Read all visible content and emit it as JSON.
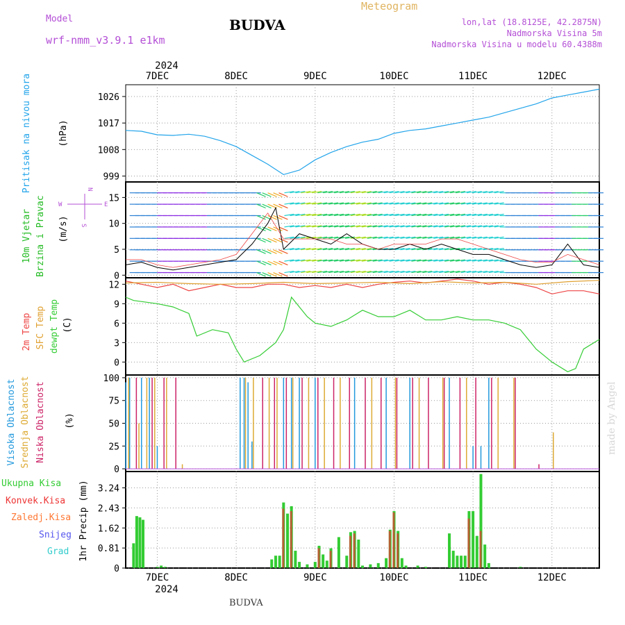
{
  "header": {
    "model_label": "Model",
    "model_name": "wrf-nmm_v3.9.1  e1km",
    "title": "BUDVA",
    "meteogram_label": "Meteogram",
    "coords": "lon,lat (18.8125E, 42.2875N)",
    "elevation": "Nadmorska Visina 5m",
    "model_elevation": "Nadmorska Visina u modelu 60.4388m"
  },
  "footer": {
    "location": "BUDVA"
  },
  "watermark": "made by Angel",
  "colors": {
    "pressure": "#22a4ea",
    "wind_label": "#22bb22",
    "temp2m": "#ee4444",
    "sfc_temp": "#e0a030",
    "dewpt": "#33cc33",
    "high_cloud": "#2299dd",
    "mid_cloud": "#ddaa33",
    "low_cloud": "#cc2266",
    "total_precip": "#33cc33",
    "conv_precip": "#ee3333",
    "freezing_precip": "#ff7733",
    "snow": "#5555ee",
    "hail": "#33cccc",
    "purple": "#b44fd6"
  },
  "chart_data": [
    {
      "type": "line",
      "panel": "pressure",
      "ylabel_lines": [
        "Pritisak na nivou mora",
        "(hPa)"
      ],
      "ylim": [
        997,
        1030
      ],
      "yticks": [
        999,
        1008,
        1017,
        1026
      ],
      "x_days": [
        "7DEC",
        "8DEC",
        "9DEC",
        "10DEC",
        "11DEC",
        "12DEC"
      ],
      "x_year": "2024",
      "xlim_day": [
        6.6,
        12.6
      ],
      "grid": true,
      "series": [
        {
          "x": [
            6.6,
            6.8,
            7.0,
            7.2,
            7.4,
            7.6,
            7.8,
            8.0,
            8.2,
            8.4,
            8.6,
            8.8,
            9.0,
            9.2,
            9.4,
            9.6,
            9.8,
            10.0,
            10.2,
            10.4,
            10.6,
            10.8,
            11.0,
            11.2,
            11.4,
            11.6,
            11.8,
            12.0,
            12.2,
            12.4,
            12.6
          ],
          "values": [
            1014.5,
            1014.2,
            1013.0,
            1012.8,
            1013.2,
            1012.5,
            1011.0,
            1009.0,
            1006.0,
            1003.0,
            999.5,
            1001.0,
            1004.5,
            1007.0,
            1009.0,
            1010.5,
            1011.5,
            1013.5,
            1014.5,
            1015.0,
            1016.0,
            1017.0,
            1018.0,
            1019.0,
            1020.5,
            1022.0,
            1023.5,
            1025.5,
            1026.5,
            1027.5,
            1028.5
          ]
        }
      ]
    },
    {
      "type": "line",
      "panel": "wind",
      "ylabel_lines": [
        "10m Vjetar",
        "Brzina i Pravac",
        "(m/s)"
      ],
      "compass": {
        "n": "N",
        "w": "W",
        "e": "E",
        "s": "S"
      },
      "ylim": [
        -0.5,
        18
      ],
      "yticks": [
        0,
        5,
        10,
        15
      ],
      "note": "wind barbs colored by speed",
      "series": [
        {
          "name": "speed",
          "x": [
            6.6,
            6.8,
            7.0,
            7.2,
            7.4,
            7.6,
            7.8,
            8.0,
            8.2,
            8.4,
            8.5,
            8.6,
            8.8,
            9.0,
            9.2,
            9.4,
            9.6,
            9.8,
            10.0,
            10.2,
            10.4,
            10.6,
            10.8,
            11.0,
            11.2,
            11.4,
            11.6,
            11.8,
            12.0,
            12.2,
            12.4,
            12.6
          ],
          "values": [
            2,
            2.5,
            1.5,
            1,
            1.5,
            2,
            2.5,
            3,
            6,
            10,
            13,
            5,
            8,
            7,
            6,
            8,
            6,
            5,
            5,
            6,
            5,
            6,
            5,
            4,
            4,
            3,
            2,
            1.5,
            2,
            6,
            2,
            1.5
          ]
        },
        {
          "name": "gust",
          "x": [
            6.6,
            6.8,
            7.0,
            7.2,
            7.4,
            7.6,
            7.8,
            8.0,
            8.2,
            8.4,
            8.6,
            8.8,
            9.0,
            9.2,
            9.4,
            9.6,
            9.8,
            10.0,
            10.2,
            10.4,
            10.6,
            10.8,
            11.0,
            11.2,
            11.4,
            11.6,
            11.8,
            12.0,
            12.2,
            12.4,
            12.6
          ],
          "values": [
            3,
            3,
            2,
            1.5,
            2,
            2.5,
            3,
            4,
            8,
            12,
            7,
            7,
            7,
            7,
            6,
            6,
            5,
            6,
            6,
            6,
            7,
            7,
            6,
            5,
            4,
            3,
            2.5,
            2.5,
            4,
            3,
            2
          ]
        }
      ]
    },
    {
      "type": "line",
      "panel": "temperature",
      "ylabel_lines": [
        "2m Temp",
        "SFC Temp",
        "dewpt Temp",
        "(C)"
      ],
      "ylim": [
        -2,
        13
      ],
      "yticks": [
        0,
        3,
        6,
        9,
        12
      ],
      "series": [
        {
          "name": "2m Temp",
          "x": [
            6.6,
            6.8,
            7.0,
            7.2,
            7.4,
            7.6,
            7.8,
            8.0,
            8.2,
            8.4,
            8.6,
            8.8,
            9.0,
            9.2,
            9.4,
            9.6,
            9.8,
            10.0,
            10.2,
            10.4,
            10.6,
            10.8,
            11.0,
            11.2,
            11.4,
            11.6,
            11.8,
            12.0,
            12.2,
            12.4,
            12.6
          ],
          "values": [
            12.5,
            12,
            11.5,
            12,
            11,
            11.5,
            12,
            11.5,
            11.5,
            12,
            12,
            11.5,
            11.8,
            11.5,
            12,
            11.5,
            12,
            12.3,
            12.5,
            12.2,
            12.5,
            12.8,
            12.5,
            12,
            12.3,
            12,
            11.5,
            10.5,
            11,
            11,
            10.5
          ]
        },
        {
          "name": "SFC Temp",
          "x": [
            6.6,
            7.0,
            7.4,
            7.8,
            8.2,
            8.6,
            9.0,
            9.4,
            9.8,
            10.2,
            10.6,
            11.0,
            11.4,
            11.8,
            12.2,
            12.6
          ],
          "values": [
            12.2,
            12.3,
            12.1,
            12.0,
            12.1,
            12.3,
            12.1,
            12.2,
            12.3,
            12.1,
            12.4,
            12.2,
            12.3,
            12.0,
            12.4,
            12.6
          ]
        },
        {
          "name": "dewpt Temp",
          "x": [
            6.6,
            6.7,
            7.0,
            7.2,
            7.4,
            7.5,
            7.7,
            7.9,
            8.0,
            8.1,
            8.3,
            8.5,
            8.6,
            8.7,
            8.9,
            9.0,
            9.2,
            9.4,
            9.6,
            9.8,
            10.0,
            10.2,
            10.4,
            10.6,
            10.8,
            11.0,
            11.2,
            11.4,
            11.6,
            11.8,
            12.0,
            12.2,
            12.3,
            12.4,
            12.6
          ],
          "values": [
            10,
            9.5,
            9,
            8.5,
            7.5,
            4,
            5,
            4.5,
            2,
            0,
            1,
            3,
            5,
            10,
            7,
            6,
            5.5,
            6.5,
            8,
            7,
            7,
            8,
            6.5,
            6.5,
            7,
            6.5,
            6.5,
            6,
            5,
            2,
            0,
            -1.5,
            -1,
            2,
            3.5
          ]
        }
      ]
    },
    {
      "type": "bar",
      "panel": "cloud",
      "ylabel_lines": [
        "Visoka Oblacnost",
        "Srednja Oblacnost",
        "Niska Oblacnost",
        "(%)"
      ],
      "ylim": [
        -3,
        103
      ],
      "yticks": [
        0,
        25,
        50,
        75,
        100
      ],
      "series": [
        {
          "name": "Visoka Oblacnost",
          "x": [
            6.6,
            6.65,
            6.8,
            6.9,
            7.0,
            8.05,
            8.1,
            8.15,
            8.2,
            8.6,
            8.7,
            8.8,
            9.0,
            9.5,
            9.9,
            10.2,
            10.7,
            11.0,
            11.1,
            11.2
          ],
          "values": [
            95,
            100,
            100,
            100,
            25,
            100,
            100,
            95,
            30,
            100,
            100,
            100,
            100,
            100,
            100,
            100,
            100,
            25,
            25,
            100
          ]
        },
        {
          "name": "Srednja Oblacnost",
          "x": [
            6.62,
            6.75,
            6.85,
            6.95,
            7.1,
            7.3,
            8.1,
            8.2,
            8.4,
            8.5,
            8.7,
            8.9,
            9.1,
            9.3,
            9.7,
            10.0,
            10.3,
            10.6,
            10.9,
            11.3,
            11.5,
            12.0
          ],
          "values": [
            100,
            50,
            100,
            100,
            100,
            5,
            100,
            100,
            100,
            100,
            100,
            100,
            100,
            100,
            100,
            100,
            100,
            100,
            100,
            100,
            100,
            40
          ]
        },
        {
          "name": "Niska Oblacnost",
          "x": [
            6.7,
            6.9,
            7.05,
            7.2,
            8.3,
            8.45,
            8.6,
            8.8,
            9.0,
            9.2,
            9.4,
            9.6,
            9.8,
            10.0,
            10.2,
            10.4,
            10.6,
            10.8,
            11.0,
            11.2,
            11.5,
            11.8
          ],
          "values": [
            100,
            100,
            100,
            100,
            100,
            100,
            100,
            100,
            100,
            100,
            100,
            100,
            100,
            100,
            100,
            100,
            100,
            100,
            100,
            100,
            100,
            5
          ]
        }
      ]
    },
    {
      "type": "bar",
      "panel": "precip",
      "ylabel_lines": [
        "1hr Precip (mm)"
      ],
      "legend": [
        "Ukupna Kisa",
        "Konvek.Kisa",
        "Zaledj.Kisa",
        "Snijeg",
        "Grad"
      ],
      "ylim": [
        0,
        3.9
      ],
      "yticks": [
        0,
        0.81,
        1.62,
        2.43,
        3.24
      ],
      "series": [
        {
          "name": "Ukupna Kisa",
          "x": [
            6.7,
            6.74,
            6.78,
            6.82,
            7.0,
            7.05,
            7.1,
            8.45,
            8.5,
            8.55,
            8.6,
            8.65,
            8.7,
            8.75,
            8.8,
            8.9,
            9.0,
            9.05,
            9.1,
            9.15,
            9.2,
            9.3,
            9.4,
            9.45,
            9.5,
            9.55,
            9.6,
            9.7,
            9.8,
            9.9,
            9.95,
            10.0,
            10.05,
            10.1,
            10.15,
            10.3,
            10.4,
            10.7,
            10.75,
            10.8,
            10.85,
            10.9,
            10.95,
            11.0,
            11.05,
            11.1,
            11.15,
            11.2,
            11.6
          ],
          "values": [
            1.0,
            2.1,
            2.05,
            1.95,
            0.05,
            0.1,
            0.05,
            0.35,
            0.5,
            0.5,
            2.65,
            2.2,
            2.5,
            0.7,
            0.25,
            0.15,
            0.25,
            0.9,
            0.55,
            0.3,
            0.8,
            1.25,
            0.5,
            1.45,
            1.5,
            1.15,
            0.1,
            0.15,
            0.2,
            0.4,
            1.55,
            2.3,
            1.5,
            0.4,
            0.1,
            0.1,
            0.05,
            1.4,
            0.7,
            0.5,
            0.5,
            0.5,
            2.3,
            2.3,
            1.3,
            3.8,
            0.95,
            0.2,
            0.05
          ]
        },
        {
          "name": "Konvek.Kisa",
          "x": [
            8.6,
            8.7,
            9.05,
            9.2,
            9.45,
            9.5,
            9.95,
            10.0,
            10.05,
            10.95,
            11.1
          ],
          "values": [
            2.4,
            2.3,
            0.8,
            0.7,
            1.3,
            1.4,
            1.5,
            2.25,
            1.4,
            2.0,
            1.5
          ]
        }
      ]
    }
  ]
}
